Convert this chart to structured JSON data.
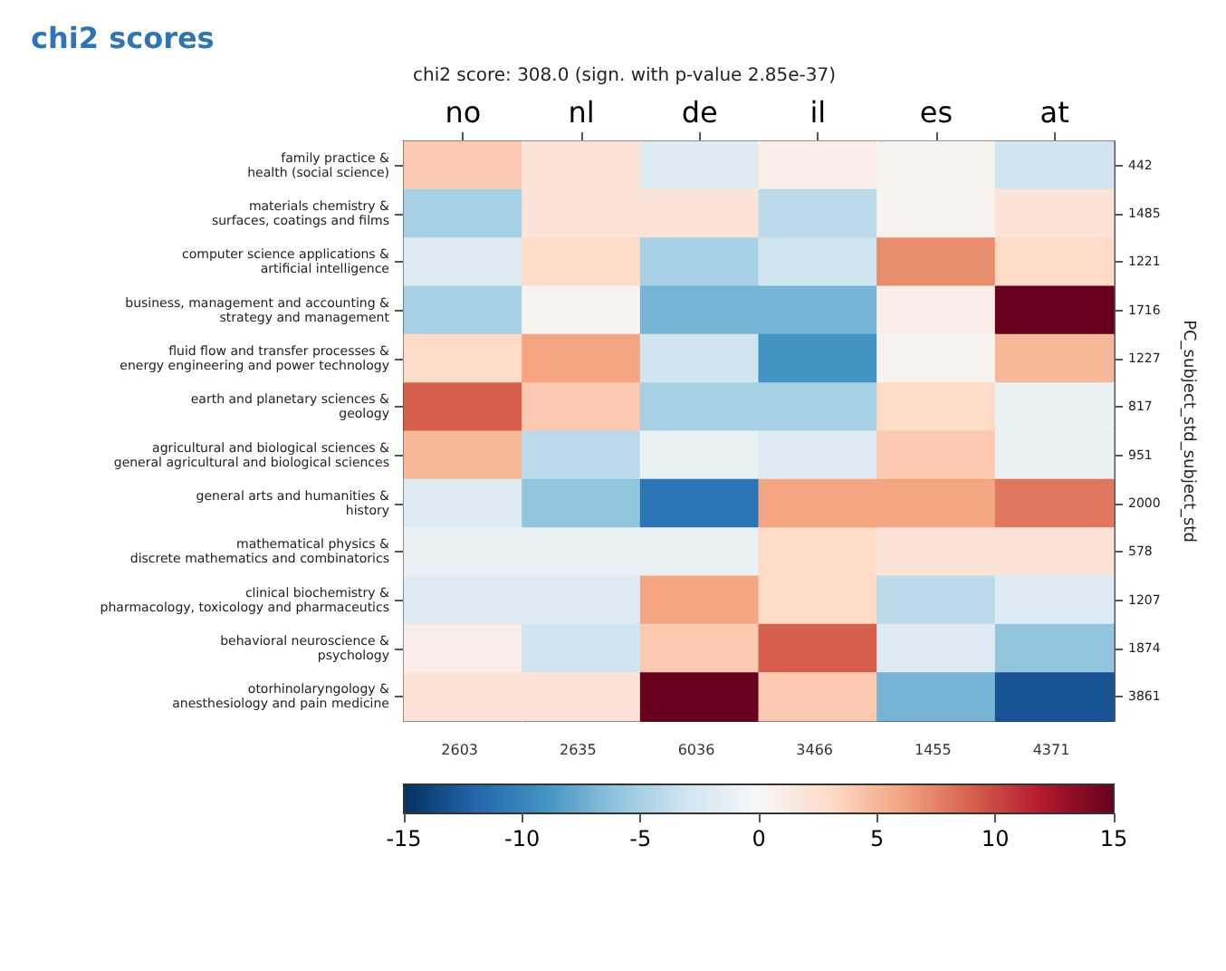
{
  "chart_data": {
    "type": "heatmap",
    "title": "chi2 scores",
    "subtitle": "chi2 score: 308.0 (sign. with p-value 2.85e-37)",
    "y2label": "PC_subject_std_subject_std",
    "categories": [
      "no",
      "nl",
      "de",
      "il",
      "es",
      "at"
    ],
    "y_categories": [
      "family practice & health (social science)",
      "materials chemistry & surfaces, coatings and films",
      "computer science applications & artificial intelligence",
      "business, management and accounting & strategy and management",
      "fluid flow and transfer processes & energy engineering and power technology",
      "earth and planetary sciences & geology",
      "agricultural and biological sciences & general agricultural and biological sciences",
      "general arts and humanities & history",
      "mathematical physics & discrete mathematics and combinatorics",
      "clinical biochemistry & pharmacology, toxicology and pharmaceutics",
      "behavioral neuroscience & psychology",
      "otorhinolaryngology & anesthesiology and pain medicine"
    ],
    "y2_categories": [
      "442",
      "1485",
      "1221",
      "1716",
      "1227",
      "817",
      "951",
      "2000",
      "578",
      "1207",
      "1874",
      "3861"
    ],
    "cells": [
      [
        4,
        2,
        -2,
        1,
        0.5,
        -3
      ],
      [
        -5,
        2,
        2,
        -4,
        0.5,
        2
      ],
      [
        -2,
        3,
        -5,
        -3,
        7,
        3
      ],
      [
        -5,
        0.5,
        -7,
        -7,
        1,
        15
      ],
      [
        3,
        6,
        -3,
        -9,
        0.5,
        5
      ],
      [
        9,
        4,
        -5,
        -5,
        3,
        -1
      ],
      [
        5,
        -4,
        -1,
        -2,
        4,
        -1
      ],
      [
        -2,
        -6,
        -11,
        6,
        6,
        8
      ],
      [
        -1,
        -1,
        -1,
        3,
        2,
        2
      ],
      [
        -2,
        -2,
        6,
        3,
        -4,
        -2
      ],
      [
        1,
        -3,
        4,
        9,
        -2,
        -6
      ],
      [
        2,
        2,
        15,
        4,
        -7,
        -13
      ]
    ],
    "clim": [
      -15,
      15
    ],
    "cticks": [
      -15,
      -10,
      -5,
      0,
      5,
      10,
      15
    ],
    "annotations": [
      "2603",
      "2635",
      "6036",
      "3466",
      "1455",
      "4371"
    ]
  }
}
